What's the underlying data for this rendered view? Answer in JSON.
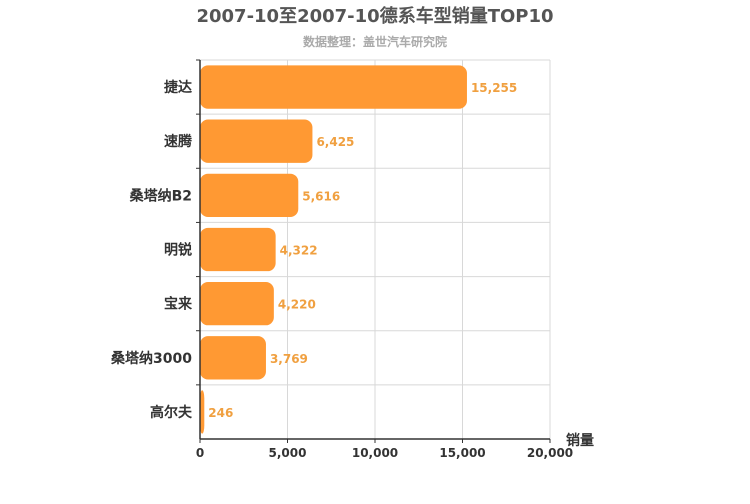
{
  "chart_data": {
    "type": "bar",
    "orientation": "horizontal",
    "title": "2007-10至2007-10德系车型销量TOP10",
    "subtitle": "数据整理：盖世汽车研究院",
    "xlabel": "销量",
    "ylabel": "",
    "xlim": [
      0,
      20000
    ],
    "x_ticks": [
      0,
      5000,
      10000,
      15000,
      20000
    ],
    "x_tick_labels": [
      "0",
      "5,000",
      "10,000",
      "15,000",
      "20,000"
    ],
    "categories": [
      "捷达",
      "速腾",
      "桑塔纳B2",
      "明锐",
      "宝来",
      "桑塔纳3000",
      "高尔夫"
    ],
    "values": [
      15255,
      6425,
      5616,
      4322,
      4220,
      3769,
      246
    ],
    "value_labels": [
      "15,255",
      "6,425",
      "5,616",
      "4,322",
      "4,220",
      "3,769",
      "246"
    ],
    "grid": true,
    "legend": "none"
  },
  "colors": {
    "bar": "#ff9933",
    "value_label": "#f0a040",
    "title": "#555555",
    "subtitle": "#aaaaaa",
    "axis_text": "#333333",
    "grid": "#d8d8d8",
    "axis_line": "#333333"
  }
}
